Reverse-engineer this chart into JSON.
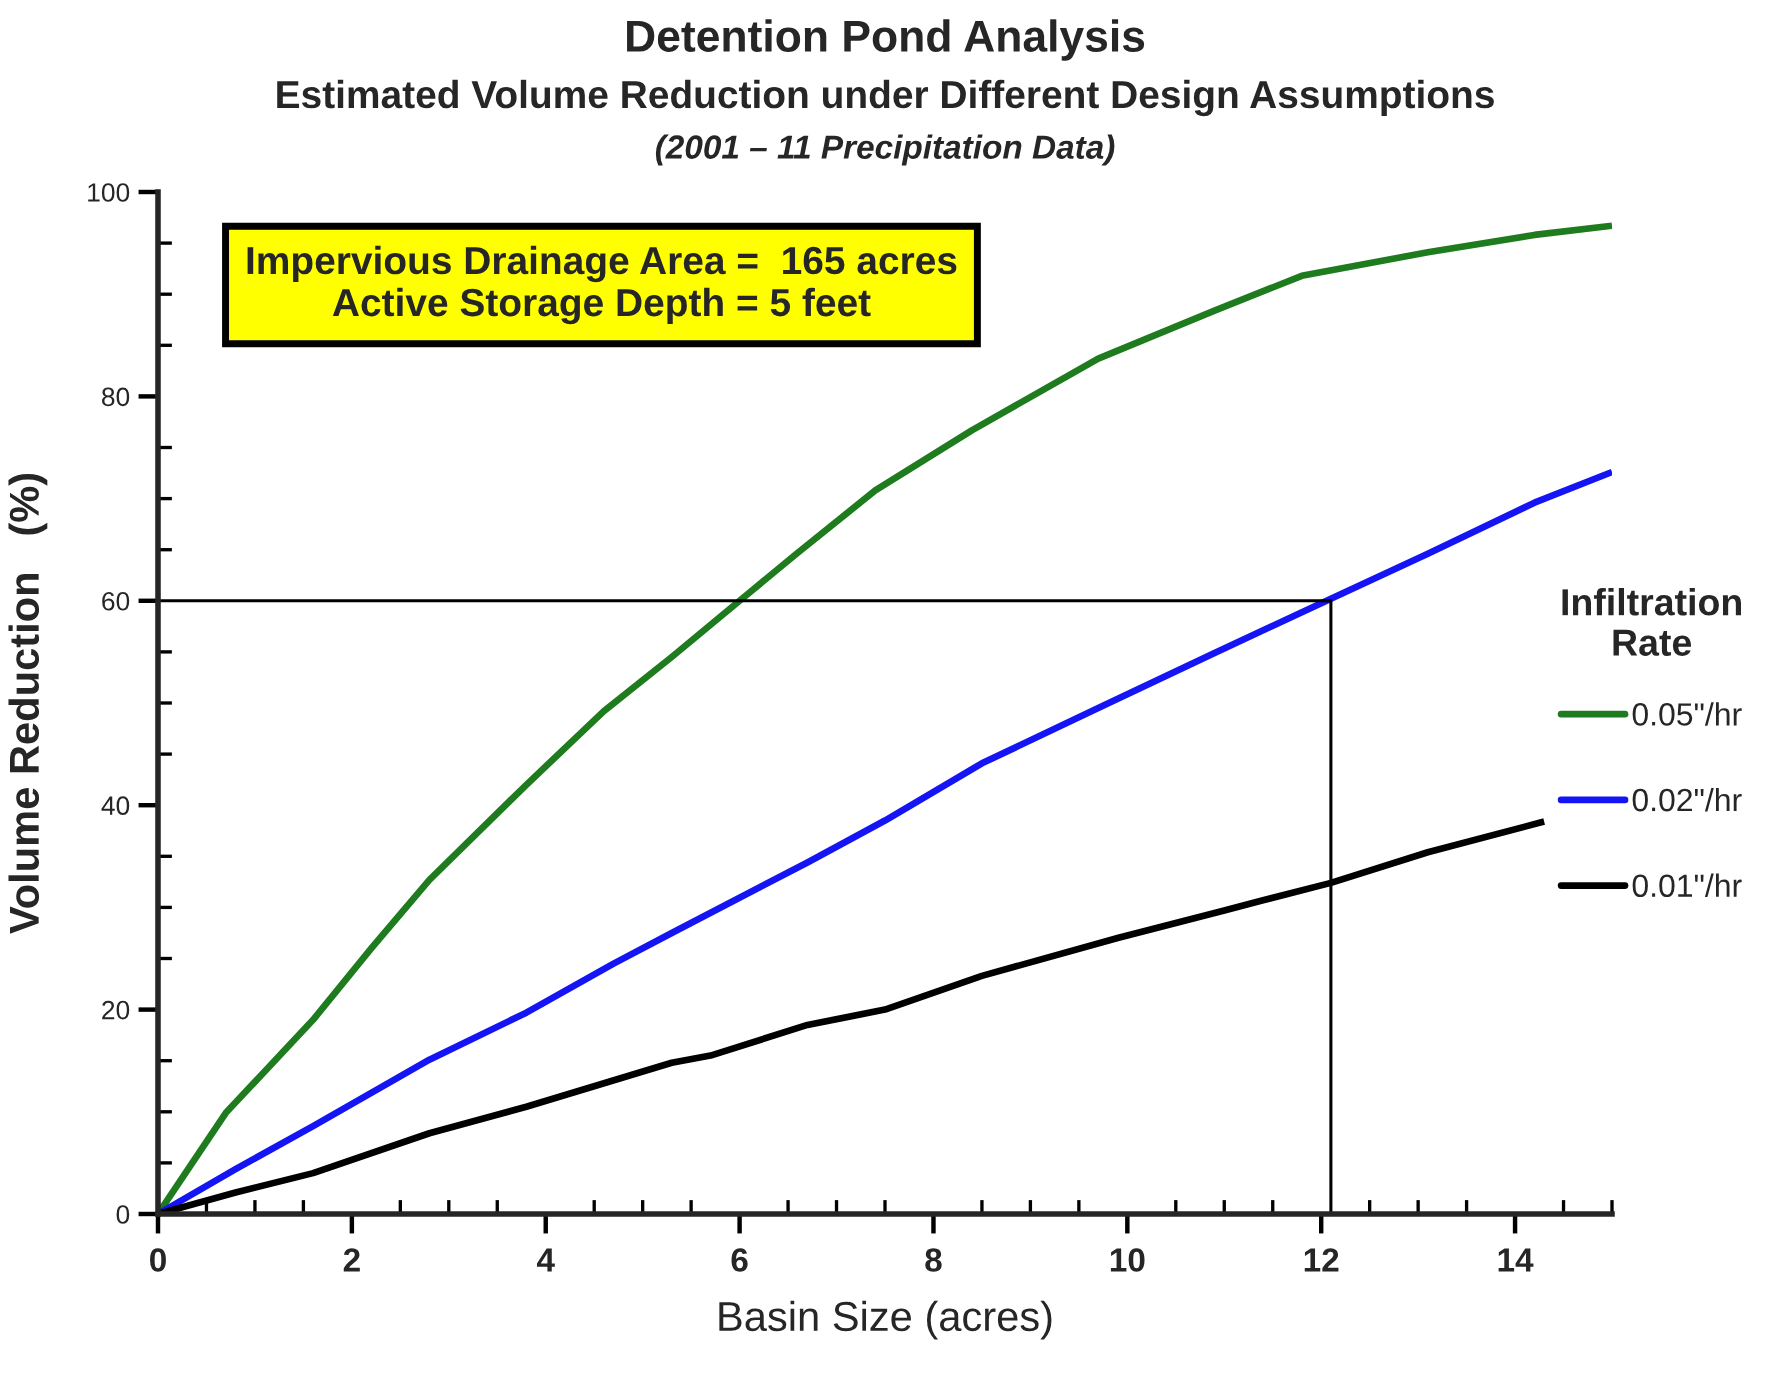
{
  "chart_data": {
    "type": "line",
    "title": "Detention Pond Analysis",
    "subtitle": "Estimated Volume Reduction under Different Design Assumptions\n(2001 – 11 Precipitation Data)",
    "xlabel": "Basin Size (acres)",
    "ylabel": "Volume Reduction   (%)",
    "legend_title": "Infiltration\nRate",
    "legend": "right",
    "annotations": [
      "Impervious Drainage Area =  165 acres\nActive Storage Depth = 5 feet"
    ],
    "xlim": [
      0,
      15
    ],
    "ylim": [
      0,
      100
    ],
    "xticks": [
      0,
      2,
      4,
      6,
      8,
      10,
      12,
      14
    ],
    "yticks": [
      0,
      20,
      40,
      60,
      80,
      100
    ],
    "series": [
      {
        "name": "0.05\"/hr",
        "color": "#1e7b1e",
        "x": [
          0,
          0.7,
          1.6,
          2.2,
          2.8,
          3.8,
          4.6,
          5.3,
          6.0,
          6.6,
          7.4,
          8.4,
          9.7,
          10.9,
          11.8,
          13.1,
          14.2,
          15.0
        ],
        "values": [
          0,
          9.9,
          19.0,
          26.0,
          32.7,
          42.0,
          49.2,
          54.5,
          60.0,
          64.7,
          70.8,
          76.7,
          83.7,
          88.4,
          91.8,
          94.1,
          95.8,
          96.7
        ]
      },
      {
        "name": "0.02\"/hr",
        "color": "#1414f5",
        "x": [
          0,
          0.8,
          1.6,
          2.8,
          3.8,
          4.7,
          5.3,
          6.7,
          7.5,
          8.5,
          9.7,
          10.9,
          12.1,
          13.1,
          14.2,
          15.0
        ],
        "values": [
          0,
          4.4,
          8.6,
          15.1,
          19.7,
          24.5,
          27.5,
          34.4,
          38.5,
          44.1,
          49.5,
          54.9,
          60.2,
          64.6,
          69.6,
          72.6
        ]
      },
      {
        "name": "0.01\"/hr",
        "color": "#000000",
        "x": [
          0,
          0.8,
          1.6,
          2.8,
          3.8,
          5.3,
          5.7,
          6.7,
          7.5,
          8.5,
          9.9,
          11.0,
          11.4,
          12.1,
          13.1,
          14.3
        ],
        "values": [
          0,
          2.1,
          4.0,
          7.9,
          10.5,
          14.8,
          15.5,
          18.5,
          20.0,
          23.3,
          27.0,
          29.7,
          30.7,
          32.4,
          35.4,
          38.4
        ]
      },
      {
        "color": "#000000",
        "x": [
          0,
          12.1,
          12.1
        ],
        "values": [
          60,
          60,
          0
        ]
      }
    ]
  }
}
